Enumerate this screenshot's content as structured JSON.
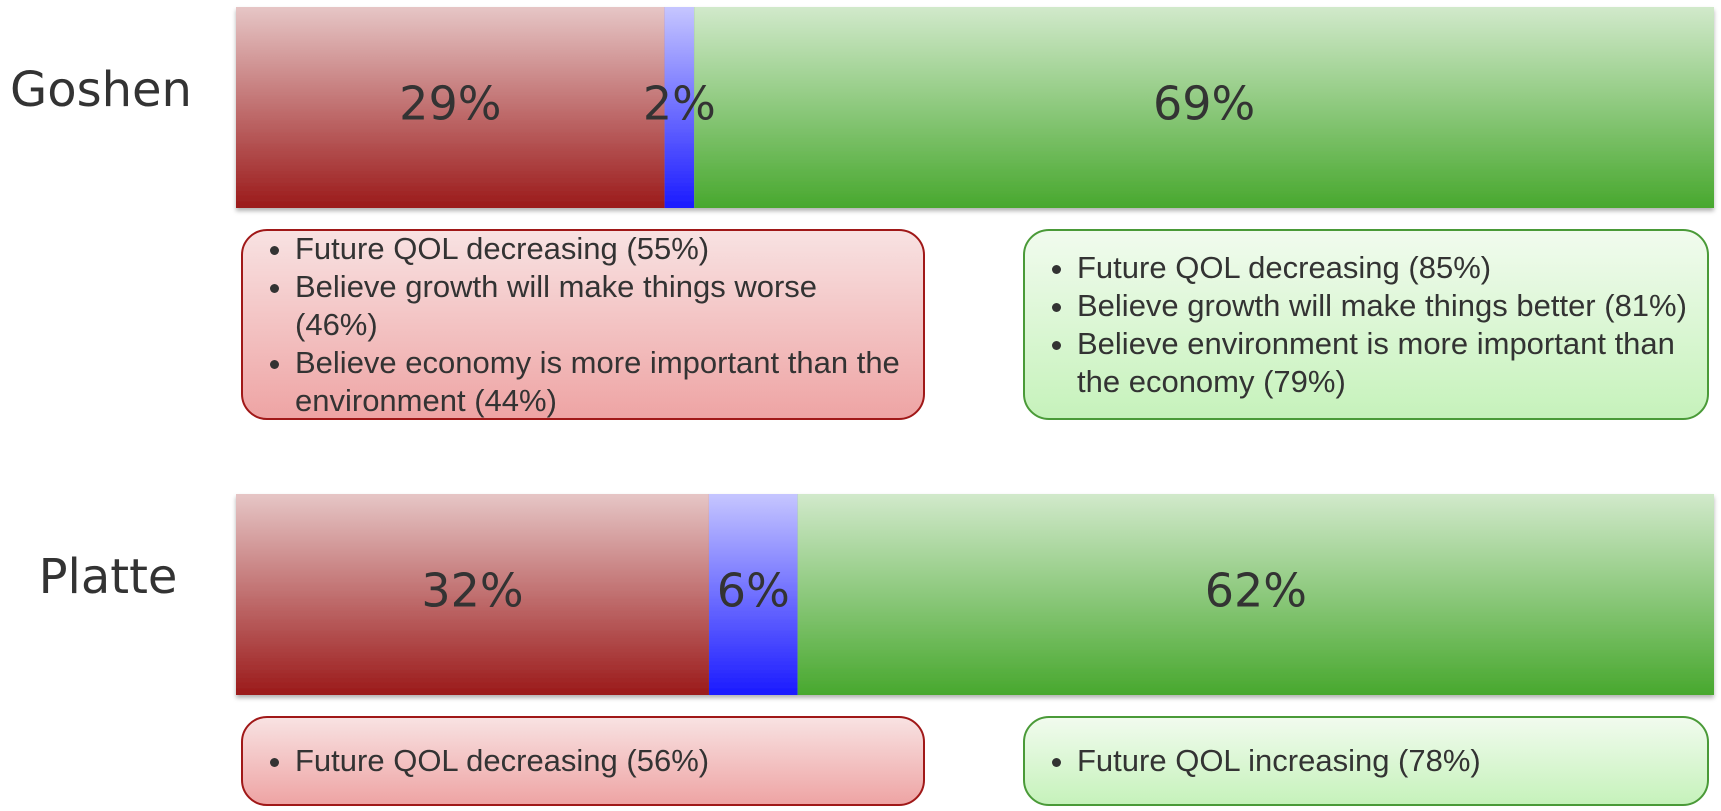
{
  "chart_data": {
    "type": "stacked-bar-horizontal",
    "categories": [
      "Goshen",
      "Platte"
    ],
    "series": [
      {
        "color": "#9b1a1a",
        "values": [
          29,
          32
        ],
        "value_labels": [
          "29%",
          "32%"
        ]
      },
      {
        "color": "#1a1aff",
        "values": [
          2,
          6
        ],
        "value_labels": [
          "2%",
          "6%"
        ]
      },
      {
        "color": "#48a82e",
        "values": [
          69,
          62
        ],
        "value_labels": [
          "69%",
          "62%"
        ]
      }
    ],
    "notes": [
      {
        "negative": [
          "Future QOL decreasing (55%)",
          "Believe growth will make things worse (46%)",
          "Believe economy is more important than the environment (44%)"
        ],
        "positive": [
          "Future QOL decreasing (85%)",
          "Believe growth will make things better (81%)",
          "Believe environment is more important than the economy (79%)"
        ]
      },
      {
        "negative": [
          "Future QOL decreasing (56%)"
        ],
        "positive": [
          "Future QOL increasing (78%)"
        ]
      }
    ]
  }
}
